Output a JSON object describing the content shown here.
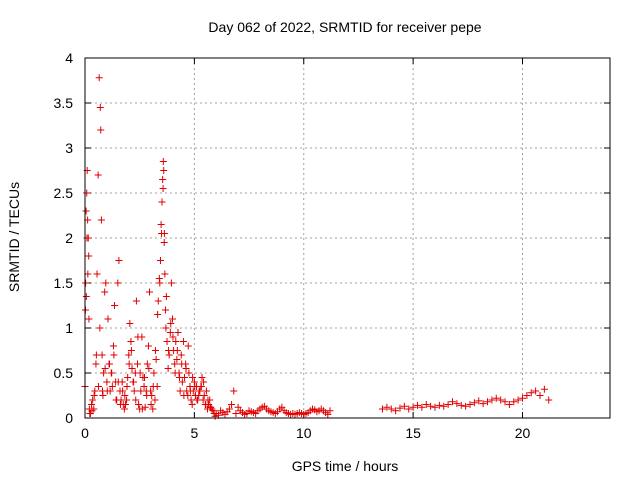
{
  "chart_data": {
    "type": "scatter",
    "title": "Day 062 of 2022, SRMTID for receiver pepe",
    "xlabel": "GPS time / hours",
    "ylabel": "SRMTID / TECUs",
    "xlim": [
      0,
      24
    ],
    "ylim": [
      0,
      4
    ],
    "xticks": [
      0,
      5,
      10,
      15,
      20
    ],
    "xtick_labels": [
      "0",
      "5",
      "10",
      "15",
      "20"
    ],
    "yticks": [
      0,
      0.5,
      1,
      1.5,
      2,
      2.5,
      3,
      3.5,
      4
    ],
    "ytick_labels": [
      "0",
      "0.5",
      "1",
      "1.5",
      "2",
      "2.5",
      "3",
      "3.5",
      "4"
    ],
    "grid": true,
    "marker": "+",
    "color": "#e00000",
    "series": [
      {
        "name": "SRMTID",
        "x": [
          0.0,
          0.03,
          0.05,
          0.08,
          0.1,
          0.12,
          0.15,
          0.17,
          0.2,
          0.25,
          0.3,
          0.35,
          0.4,
          0.45,
          0.5,
          0.55,
          0.6,
          0.65,
          0.7,
          0.72,
          0.75,
          0.78,
          0.8,
          0.85,
          0.9,
          0.95,
          1.0,
          1.05,
          1.1,
          1.15,
          1.2,
          1.25,
          1.3,
          1.35,
          1.4,
          1.45,
          1.5,
          1.55,
          1.6,
          1.65,
          1.7,
          1.75,
          1.8,
          1.85,
          1.9,
          1.95,
          2.0,
          2.05,
          2.1,
          2.15,
          2.2,
          2.25,
          2.3,
          2.35,
          2.4,
          2.45,
          2.5,
          2.55,
          2.6,
          2.65,
          2.7,
          2.75,
          2.8,
          2.85,
          2.9,
          2.95,
          3.0,
          3.05,
          3.1,
          3.15,
          3.2,
          3.25,
          3.3,
          3.35,
          3.4,
          3.45,
          3.5,
          3.52,
          3.55,
          3.58,
          3.6,
          3.62,
          3.65,
          3.68,
          3.7,
          3.75,
          3.8,
          3.85,
          3.9,
          3.95,
          4.0,
          4.05,
          4.1,
          4.15,
          4.2,
          4.25,
          4.3,
          4.35,
          4.4,
          4.45,
          4.5,
          4.55,
          4.6,
          4.65,
          4.7,
          4.75,
          4.8,
          4.85,
          4.9,
          4.95,
          5.0,
          5.05,
          5.1,
          5.15,
          5.2,
          5.25,
          5.3,
          5.35,
          5.4,
          5.45,
          5.5,
          5.55,
          5.6,
          5.65,
          5.7,
          5.75,
          5.8,
          5.85,
          5.9,
          5.95,
          6.0,
          6.1,
          6.2,
          6.3,
          6.4,
          6.5,
          6.6,
          6.7,
          6.8,
          6.9,
          7.0,
          7.1,
          7.2,
          7.3,
          7.4,
          7.5,
          7.6,
          7.7,
          7.8,
          7.9,
          8.0,
          8.1,
          8.2,
          8.3,
          8.4,
          8.5,
          8.6,
          8.7,
          8.8,
          8.9,
          9.0,
          9.1,
          9.2,
          9.3,
          9.4,
          9.5,
          9.6,
          9.7,
          9.8,
          9.9,
          10.0,
          10.1,
          10.2,
          10.3,
          10.4,
          10.5,
          10.6,
          10.7,
          10.8,
          10.9,
          11.0,
          11.1,
          11.2,
          13.6,
          13.8,
          14.0,
          14.2,
          14.4,
          14.6,
          14.8,
          15.0,
          15.2,
          15.4,
          15.6,
          15.8,
          16.0,
          16.2,
          16.4,
          16.6,
          16.8,
          17.0,
          17.2,
          17.4,
          17.6,
          17.8,
          18.0,
          18.2,
          18.4,
          18.6,
          18.8,
          19.0,
          19.2,
          19.4,
          19.6,
          19.8,
          20.0,
          20.2,
          20.4,
          20.6,
          20.8,
          21.0,
          21.2,
          0.02,
          0.06,
          0.09,
          0.13,
          0.18,
          0.22,
          0.32,
          0.42,
          0.52,
          0.62,
          0.68,
          0.82,
          0.92,
          1.02,
          1.12,
          1.22,
          1.32,
          1.42,
          1.52,
          1.62,
          1.72,
          1.82,
          1.92,
          2.02,
          2.12,
          2.22,
          2.32,
          2.42,
          2.52,
          2.62,
          2.72,
          2.82,
          2.92,
          3.02,
          3.12,
          3.22,
          3.32,
          3.42,
          3.48,
          3.57,
          3.63,
          3.72,
          3.82,
          3.92,
          4.02,
          4.12,
          4.22,
          4.32,
          4.42,
          4.52,
          4.62,
          4.72,
          4.82,
          4.92,
          5.02,
          5.12,
          5.22,
          5.32,
          5.42,
          5.52,
          5.62,
          5.72
        ],
        "y": [
          0.35,
          1.5,
          2.3,
          2.5,
          2.75,
          2.2,
          2.0,
          1.8,
          0.1,
          0.05,
          0.15,
          0.2,
          0.1,
          0.3,
          0.6,
          1.6,
          2.7,
          3.78,
          3.45,
          3.2,
          2.2,
          0.7,
          0.3,
          0.5,
          1.4,
          1.5,
          0.4,
          1.1,
          0.6,
          0.3,
          0.5,
          0.35,
          0.8,
          1.25,
          0.4,
          0.2,
          1.5,
          1.75,
          0.3,
          0.2,
          0.4,
          0.15,
          0.1,
          0.15,
          0.2,
          0.45,
          0.7,
          1.05,
          0.85,
          0.55,
          0.4,
          0.3,
          0.5,
          1.3,
          0.6,
          0.15,
          0.1,
          0.3,
          0.9,
          0.45,
          0.35,
          0.12,
          0.3,
          0.6,
          0.8,
          1.4,
          0.3,
          0.25,
          0.1,
          0.5,
          0.2,
          0.65,
          0.35,
          1.3,
          1.55,
          1.75,
          2.05,
          2.4,
          2.65,
          2.85,
          2.75,
          1.95,
          1.6,
          1.2,
          1.0,
          0.85,
          0.55,
          0.7,
          0.95,
          1.5,
          1.1,
          0.75,
          0.6,
          0.85,
          0.65,
          0.95,
          0.5,
          0.3,
          0.7,
          0.4,
          0.85,
          0.45,
          0.6,
          0.3,
          0.25,
          0.5,
          0.35,
          0.2,
          0.15,
          0.3,
          0.4,
          0.25,
          0.35,
          0.2,
          0.25,
          0.3,
          0.35,
          0.45,
          0.2,
          0.25,
          0.15,
          0.3,
          0.1,
          0.15,
          0.2,
          0.12,
          0.1,
          0.08,
          0.05,
          0.02,
          0.05,
          0.03,
          0.08,
          0.06,
          0.04,
          0.07,
          0.1,
          0.15,
          0.3,
          0.05,
          0.12,
          0.08,
          0.06,
          0.04,
          0.05,
          0.08,
          0.07,
          0.06,
          0.05,
          0.08,
          0.1,
          0.12,
          0.13,
          0.1,
          0.08,
          0.07,
          0.06,
          0.05,
          0.07,
          0.1,
          0.12,
          0.08,
          0.06,
          0.05,
          0.04,
          0.05,
          0.04,
          0.05,
          0.06,
          0.05,
          0.04,
          0.05,
          0.06,
          0.08,
          0.1,
          0.09,
          0.07,
          0.08,
          0.1,
          0.08,
          0.06,
          0.04,
          0.08,
          0.1,
          0.12,
          0.1,
          0.08,
          0.11,
          0.13,
          0.1,
          0.12,
          0.14,
          0.12,
          0.15,
          0.13,
          0.12,
          0.14,
          0.13,
          0.15,
          0.18,
          0.16,
          0.14,
          0.13,
          0.15,
          0.17,
          0.19,
          0.16,
          0.18,
          0.2,
          0.22,
          0.2,
          0.18,
          0.15,
          0.18,
          0.2,
          0.22,
          0.25,
          0.28,
          0.3,
          0.25,
          0.32,
          0.2,
          1.2,
          1.35,
          2.0,
          1.6,
          1.1,
          0.05,
          0.08,
          0.25,
          0.7,
          0.35,
          1.0,
          0.25,
          0.55,
          0.3,
          0.6,
          0.5,
          0.7,
          0.2,
          0.4,
          0.15,
          0.3,
          0.25,
          0.35,
          0.6,
          0.75,
          0.4,
          0.2,
          0.9,
          0.5,
          0.1,
          0.45,
          0.25,
          0.55,
          0.15,
          0.35,
          0.75,
          1.15,
          1.5,
          2.15,
          2.55,
          2.05,
          1.35,
          0.75,
          1.05,
          0.9,
          0.5,
          0.75,
          0.45,
          0.6,
          0.25,
          0.55,
          0.8,
          0.3,
          0.45,
          0.35,
          0.2,
          0.3,
          0.35,
          0.4,
          0.15,
          0.2,
          0.12
        ]
      }
    ]
  }
}
